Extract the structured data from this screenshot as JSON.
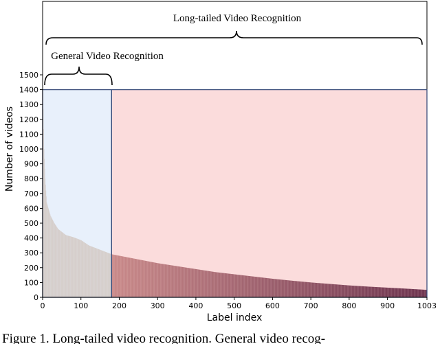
{
  "chart_data": {
    "type": "bar",
    "xlabel": "Label index",
    "ylabel": "Number of videos",
    "xlim": [
      0,
      1003
    ],
    "ylim": [
      0,
      1500
    ],
    "x_ticks": [
      0,
      100,
      200,
      300,
      400,
      500,
      600,
      700,
      800,
      900,
      1003
    ],
    "y_ticks": [
      0,
      100,
      200,
      300,
      400,
      500,
      600,
      700,
      800,
      900,
      1000,
      1100,
      1200,
      1300,
      1400,
      1500
    ],
    "num_labels": 1003,
    "general_region_end": 180,
    "distribution_points": [
      {
        "x": 0,
        "y": 1400
      },
      {
        "x": 3,
        "y": 1000
      },
      {
        "x": 6,
        "y": 800
      },
      {
        "x": 10,
        "y": 640
      },
      {
        "x": 20,
        "y": 550
      },
      {
        "x": 30,
        "y": 500
      },
      {
        "x": 40,
        "y": 460
      },
      {
        "x": 50,
        "y": 440
      },
      {
        "x": 60,
        "y": 420
      },
      {
        "x": 80,
        "y": 405
      },
      {
        "x": 100,
        "y": 385
      },
      {
        "x": 120,
        "y": 350
      },
      {
        "x": 140,
        "y": 330
      },
      {
        "x": 160,
        "y": 310
      },
      {
        "x": 180,
        "y": 290
      },
      {
        "x": 200,
        "y": 280
      },
      {
        "x": 250,
        "y": 255
      },
      {
        "x": 300,
        "y": 230
      },
      {
        "x": 350,
        "y": 210
      },
      {
        "x": 400,
        "y": 190
      },
      {
        "x": 450,
        "y": 170
      },
      {
        "x": 500,
        "y": 155
      },
      {
        "x": 550,
        "y": 140
      },
      {
        "x": 600,
        "y": 125
      },
      {
        "x": 650,
        "y": 112
      },
      {
        "x": 700,
        "y": 100
      },
      {
        "x": 750,
        "y": 90
      },
      {
        "x": 800,
        "y": 80
      },
      {
        "x": 850,
        "y": 72
      },
      {
        "x": 900,
        "y": 65
      },
      {
        "x": 950,
        "y": 58
      },
      {
        "x": 1003,
        "y": 50
      }
    ],
    "annotations": {
      "long_tailed": "Long-tailed Video Recognition",
      "general": "General Video Recognition"
    },
    "colors": {
      "general_region": "#e8f0fb",
      "longtail_region": "#fbdcdc",
      "region_border": "#3d4f7c",
      "general_bar": "#d6cfcc",
      "tail_bar_start": "#c98a8a",
      "tail_bar_end": "#6e3550"
    }
  },
  "caption": "Figure 1. Long-tailed video recognition. General video recog-"
}
